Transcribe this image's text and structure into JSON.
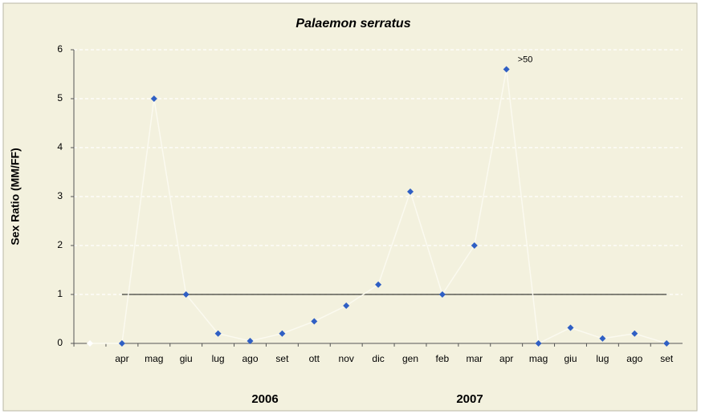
{
  "chart_data": {
    "type": "line",
    "title": "Palaemon serratus",
    "y_label": "Sex Ratio (MM/FF)",
    "categories": [
      null,
      "apr",
      "mag",
      "giu",
      "lug",
      "ago",
      "set",
      "ott",
      "nov",
      "dic",
      "gen",
      "feb",
      "mar",
      "apr",
      "mag",
      "giu",
      "lug",
      "ago",
      "set"
    ],
    "values": [
      0,
      0,
      5,
      1,
      0.2,
      0.05,
      0.2,
      0.45,
      0.77,
      1.2,
      3.1,
      1,
      2,
      5.6,
      0,
      0.32,
      0.1,
      0.2,
      0
    ],
    "color": "#2f5fc4",
    "reference_line": 1,
    "annotation": ">50",
    "group_labels": [
      "2006",
      "2007"
    ],
    "ylim": [
      0,
      6
    ],
    "yticks": [
      0,
      1,
      2,
      3,
      4,
      5,
      6
    ],
    "grid": true
  }
}
